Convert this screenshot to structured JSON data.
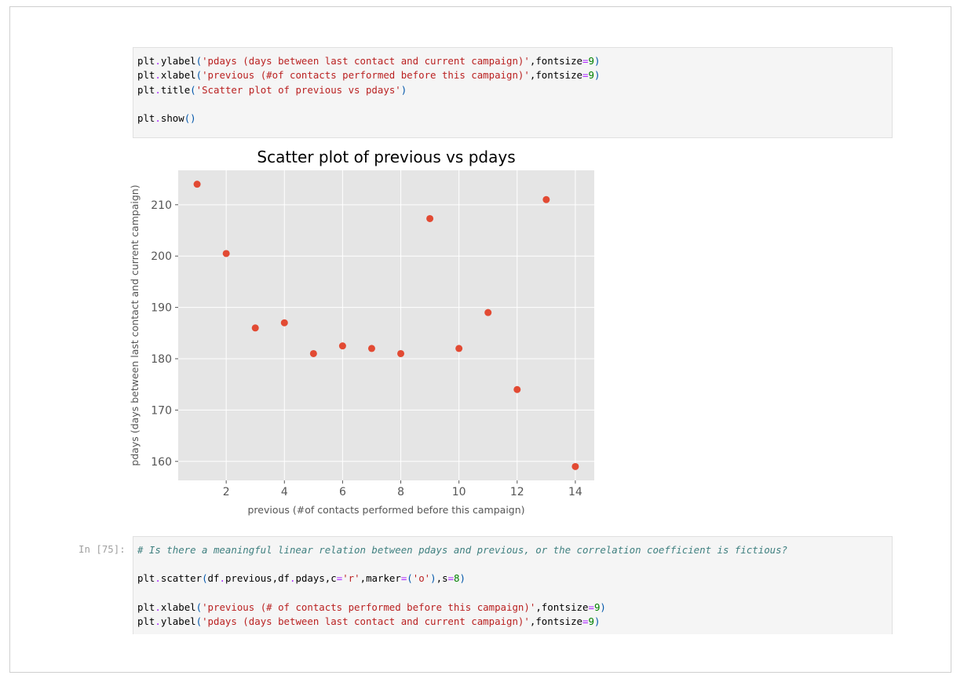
{
  "cell1": {
    "lines": [
      {
        "parts": [
          [
            "plt"
          ],
          [
            ".",
            "op"
          ],
          [
            "ylabel"
          ],
          [
            "(",
            "paren"
          ],
          [
            "'pdays (days between last contact and current campaign)'",
            "str"
          ],
          [
            ","
          ],
          [
            "fontsize"
          ],
          [
            "=",
            "op"
          ],
          [
            "9",
            "num"
          ],
          [
            ")",
            "paren"
          ]
        ]
      },
      {
        "parts": [
          [
            "plt"
          ],
          [
            ".",
            "op"
          ],
          [
            "xlabel"
          ],
          [
            "(",
            "paren"
          ],
          [
            "'previous (#of contacts performed before this campaign)'",
            "str"
          ],
          [
            ","
          ],
          [
            "fontsize"
          ],
          [
            "=",
            "op"
          ],
          [
            "9",
            "num"
          ],
          [
            ")",
            "paren"
          ]
        ]
      },
      {
        "parts": [
          [
            "plt"
          ],
          [
            ".",
            "op"
          ],
          [
            "title"
          ],
          [
            "(",
            "paren"
          ],
          [
            "'Scatter plot of previous vs pdays'",
            "str"
          ],
          [
            ")",
            "paren"
          ]
        ]
      },
      {
        "parts": []
      },
      {
        "parts": [
          [
            "plt"
          ],
          [
            ".",
            "op"
          ],
          [
            "show"
          ],
          [
            "()",
            "paren"
          ]
        ]
      }
    ]
  },
  "cell2": {
    "prompt": "In [75]:",
    "lines": [
      {
        "parts": [
          [
            "# Is there a meaningful linear relation between pdays and previous, or the correlation coefficient is fictious?",
            "cmt"
          ]
        ]
      },
      {
        "parts": []
      },
      {
        "parts": [
          [
            "plt"
          ],
          [
            ".",
            "op"
          ],
          [
            "scatter"
          ],
          [
            "(",
            "paren"
          ],
          [
            "df"
          ],
          [
            ".",
            "op"
          ],
          [
            "previous"
          ],
          [
            ","
          ],
          [
            "df"
          ],
          [
            ".",
            "op"
          ],
          [
            "pdays"
          ],
          [
            ","
          ],
          [
            "c"
          ],
          [
            "=",
            "op"
          ],
          [
            "'r'",
            "str"
          ],
          [
            ","
          ],
          [
            "marker"
          ],
          [
            "=",
            "op"
          ],
          [
            "(",
            "paren"
          ],
          [
            "'o'",
            "str"
          ],
          [
            ")",
            "paren"
          ],
          [
            ","
          ],
          [
            "s"
          ],
          [
            "=",
            "op"
          ],
          [
            "8",
            "num"
          ],
          [
            ")",
            "paren"
          ]
        ]
      },
      {
        "parts": []
      },
      {
        "parts": [
          [
            "plt"
          ],
          [
            ".",
            "op"
          ],
          [
            "xlabel"
          ],
          [
            "(",
            "paren"
          ],
          [
            "'previous (# of contacts performed before this campaign)'",
            "str"
          ],
          [
            ","
          ],
          [
            "fontsize"
          ],
          [
            "=",
            "op"
          ],
          [
            "9",
            "num"
          ],
          [
            ")",
            "paren"
          ]
        ]
      },
      {
        "parts": [
          [
            "plt"
          ],
          [
            ".",
            "op"
          ],
          [
            "ylabel"
          ],
          [
            "(",
            "paren"
          ],
          [
            "'pdays (days between last contact and current campaign)'",
            "str"
          ],
          [
            ","
          ],
          [
            "fontsize"
          ],
          [
            "=",
            "op"
          ],
          [
            "9",
            "num"
          ],
          [
            ")",
            "paren"
          ]
        ]
      }
    ]
  },
  "chart_data": {
    "type": "scatter",
    "title": "Scatter plot of previous vs pdays",
    "xlabel": "previous (#of contacts performed before this campaign)",
    "ylabel": "pdays (days between last contact and current campaign)",
    "x": [
      1,
      2,
      3,
      4,
      5,
      6,
      7,
      8,
      9,
      10,
      11,
      12,
      13,
      14
    ],
    "y": [
      214,
      200.5,
      186,
      187,
      181,
      182.5,
      182,
      181,
      207.3,
      182,
      189,
      174,
      211,
      159
    ],
    "xlim": [
      0.35,
      14.65
    ],
    "ylim": [
      156.3,
      216.7
    ],
    "xticks": [
      2,
      4,
      6,
      8,
      10,
      12,
      14
    ],
    "yticks": [
      160,
      170,
      180,
      190,
      200,
      210
    ],
    "grid": true,
    "marker_color": "#e24a33",
    "background": "#e5e5e5",
    "grid_color": "#ffffff"
  }
}
